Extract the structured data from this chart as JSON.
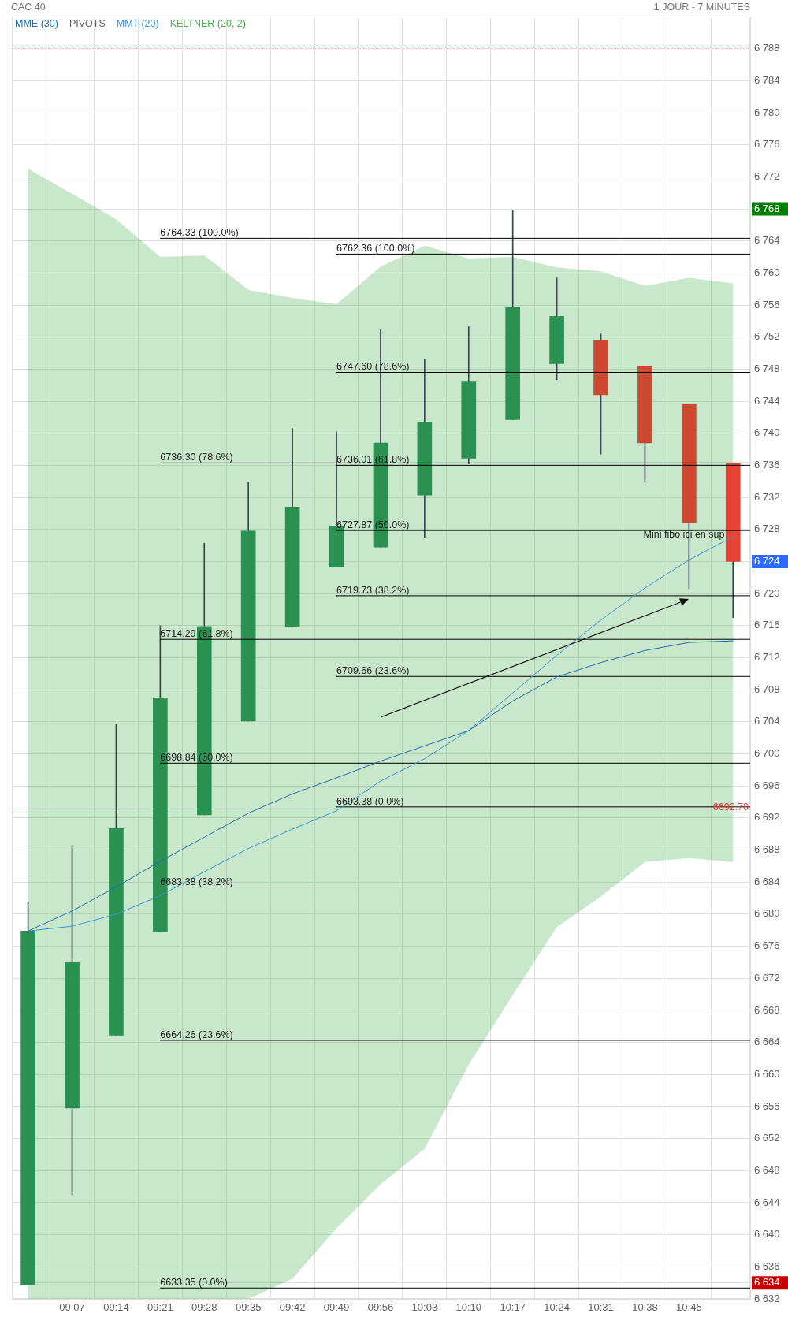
{
  "chart_data": {
    "type": "candlestick",
    "title": "CAC 40",
    "subtitle": "1 JOUR - 7 MINUTES",
    "x": [
      9,
      9.1167,
      9.2333,
      9.35,
      9.4667,
      9.5833,
      9.7,
      9.8167,
      9.9333,
      10.05,
      10.1667,
      10.2833,
      10.4,
      10.5167,
      10.6333,
      10.75,
      10.8667
    ],
    "ohlc": [
      [
        6633.7,
        6681.4,
        6633.7,
        6677.9
      ],
      [
        6655.8,
        6688.4,
        6645.0,
        6674.0
      ],
      [
        6664.9,
        6703.7,
        6664.9,
        6690.7
      ],
      [
        6677.8,
        6716.0,
        6677.8,
        6707.0
      ],
      [
        6692.4,
        6726.3,
        6692.4,
        6715.9
      ],
      [
        6704.1,
        6733.9,
        6704.1,
        6727.8
      ],
      [
        6715.9,
        6740.6,
        6715.9,
        6730.8
      ],
      [
        6723.4,
        6740.2,
        6723.4,
        6728.4
      ],
      [
        6725.8,
        6752.9,
        6725.8,
        6738.8
      ],
      [
        6732.3,
        6749.2,
        6727.0,
        6741.4
      ],
      [
        6736.9,
        6753.3,
        6736.2,
        6746.4
      ],
      [
        6741.7,
        6767.8,
        6741.7,
        6755.7
      ],
      [
        6748.7,
        6759.4,
        6746.7,
        6754.6
      ],
      [
        6751.6,
        6752.4,
        6737.4,
        6744.8
      ],
      [
        6748.3,
        6748.3,
        6733.9,
        6738.8
      ],
      [
        6743.6,
        6743.6,
        6720.6,
        6728.8
      ],
      [
        6736.2,
        6736.2,
        6717.0,
        6724.0
      ]
    ],
    "colors": [
      "#2a9152",
      "#2a9152",
      "#2a9152",
      "#2a9152",
      "#2a9152",
      "#2a9152",
      "#2a9152",
      "#2a9152",
      "#2a9152",
      "#2a9152",
      "#2a9152",
      "#2a9152",
      "#2a9152",
      "#cc4a30",
      "#cc4a30",
      "#cc4a30",
      "#e64536"
    ],
    "xlim": [
      8.957,
      10.912
    ],
    "xticks": [
      {
        "value": 9.1167,
        "label": "09:07"
      },
      {
        "value": 9.2333,
        "label": "09:14"
      },
      {
        "value": 9.35,
        "label": "09:21"
      },
      {
        "value": 9.4667,
        "label": "09:28"
      },
      {
        "value": 9.5833,
        "label": "09:35"
      },
      {
        "value": 9.7,
        "label": "09:42"
      },
      {
        "value": 9.8167,
        "label": "09:49"
      },
      {
        "value": 9.9333,
        "label": "09:56"
      },
      {
        "value": 10.05,
        "label": "10:03"
      },
      {
        "value": 10.1667,
        "label": "10:10"
      },
      {
        "value": 10.2833,
        "label": "10:17"
      },
      {
        "value": 10.4,
        "label": "10:24"
      },
      {
        "value": 10.5167,
        "label": "10:31"
      },
      {
        "value": 10.6333,
        "label": "10:38"
      },
      {
        "value": 10.75,
        "label": "10:45"
      }
    ],
    "ylim": [
      6632,
      6792
    ],
    "yticks": [
      {
        "value": 6632,
        "label": "6 632"
      },
      {
        "value": 6634,
        "label": "6 634"
      },
      {
        "value": 6636,
        "label": "6 636"
      },
      {
        "value": 6640,
        "label": "6 640"
      },
      {
        "value": 6644,
        "label": "6 644"
      },
      {
        "value": 6648,
        "label": "6 648"
      },
      {
        "value": 6652,
        "label": "6 652"
      },
      {
        "value": 6656,
        "label": "6 656"
      },
      {
        "value": 6660,
        "label": "6 660"
      },
      {
        "value": 6664,
        "label": "6 664"
      },
      {
        "value": 6668,
        "label": "6 668"
      },
      {
        "value": 6672,
        "label": "6 672"
      },
      {
        "value": 6676,
        "label": "6 676"
      },
      {
        "value": 6680,
        "label": "6 680"
      },
      {
        "value": 6684,
        "label": "6 684"
      },
      {
        "value": 6688,
        "label": "6 688"
      },
      {
        "value": 6692,
        "label": "6 692"
      },
      {
        "value": 6696,
        "label": "6 696"
      },
      {
        "value": 6700,
        "label": "6 700"
      },
      {
        "value": 6704,
        "label": "6 704"
      },
      {
        "value": 6708,
        "label": "6 708"
      },
      {
        "value": 6712,
        "label": "6 712"
      },
      {
        "value": 6716,
        "label": "6 716"
      },
      {
        "value": 6720,
        "label": "6 720"
      },
      {
        "value": 6724,
        "label": "6 724"
      },
      {
        "value": 6728,
        "label": "6 728"
      },
      {
        "value": 6732,
        "label": "6 732"
      },
      {
        "value": 6736,
        "label": "6 736"
      },
      {
        "value": 6740,
        "label": "6 740"
      },
      {
        "value": 6744,
        "label": "6 744"
      },
      {
        "value": 6748,
        "label": "6 748"
      },
      {
        "value": 6752,
        "label": "6 752"
      },
      {
        "value": 6756,
        "label": "6 756"
      },
      {
        "value": 6760,
        "label": "6 760"
      },
      {
        "value": 6764,
        "label": "6 764"
      },
      {
        "value": 6768,
        "label": "6 768"
      },
      {
        "value": 6772,
        "label": "6 772"
      },
      {
        "value": 6776,
        "label": "6 776"
      },
      {
        "value": 6780,
        "label": "6 780"
      },
      {
        "value": 6784,
        "label": "6 784"
      },
      {
        "value": 6788,
        "label": "6 788"
      }
    ],
    "grid": true,
    "legend": "top left",
    "marker": "none",
    "series": [
      {
        "name": "MME (30)",
        "type": "line",
        "color": "#1d6fb0",
        "values": [
          6677.9,
          6680.4,
          6683.4,
          6686.6,
          6689.6,
          6692.6,
          6695.0,
          6697.0,
          6699.1,
          6701.0,
          6702.9,
          6706.6,
          6709.6,
          6711.4,
          6712.9,
          6713.9,
          6714.1
        ]
      },
      {
        "name": "PIVOTS",
        "type": "line",
        "color": "#616161",
        "values": [
          null,
          null,
          null,
          null,
          null,
          null,
          null,
          null,
          null,
          null,
          null,
          null,
          null,
          null,
          null,
          null,
          null
        ]
      },
      {
        "name": "MMT (20)",
        "type": "line",
        "color": "#3b94d6",
        "values": [
          6677.9,
          6678.5,
          6680.0,
          6682.3,
          6685.3,
          6688.2,
          6690.6,
          6692.9,
          6696.6,
          6699.4,
          6702.9,
          6707.6,
          6712.3,
          6716.7,
          6720.7,
          6724.2,
          6727.1
        ]
      },
      {
        "name": "KELTNER (20, 2)",
        "type": "line",
        "color": "#4caf50",
        "values": [
          null,
          null,
          null,
          null,
          null,
          null,
          null,
          null,
          null,
          null,
          null,
          null,
          null,
          null,
          null,
          null,
          null
        ],
        "upper": [
          6773.0,
          6769.9,
          6766.7,
          6762.0,
          6762.2,
          6757.9,
          6756.9,
          6756.1,
          6760.8,
          6763.4,
          6761.8,
          6762.0,
          6760.7,
          6760.2,
          6758.4,
          6759.4,
          6758.7
        ],
        "lower": [
          6632,
          6632,
          6632,
          6632,
          6632,
          6632,
          6634.5,
          6640.8,
          6646.3,
          6650.7,
          6661.2,
          6669.9,
          6678.4,
          6682.2,
          6686.5,
          6687.0,
          6686.5
        ]
      },
      {
        "name": "6764.33 (100.0%)",
        "type": "line",
        "color": "#000000",
        "x": [
          9.35,
          10.912
        ],
        "values": [
          6764.33,
          6764.33
        ]
      },
      {
        "name": "6736.30 (78.6%)",
        "type": "line",
        "color": "#000000",
        "x": [
          9.35,
          10.912
        ],
        "values": [
          6736.3,
          6736.3
        ]
      },
      {
        "name": "6714.29 (61.8%)",
        "type": "line",
        "color": "#000000",
        "x": [
          9.35,
          10.912
        ],
        "values": [
          6714.29,
          6714.29
        ]
      },
      {
        "name": "6698.84 (50.0%)",
        "type": "line",
        "color": "#000000",
        "x": [
          9.35,
          10.912
        ],
        "values": [
          6698.84,
          6698.84
        ]
      },
      {
        "name": "6683.38 (38.2%)",
        "type": "line",
        "color": "#000000",
        "x": [
          9.35,
          10.912
        ],
        "values": [
          6683.38,
          6683.38
        ]
      },
      {
        "name": "6664.26 (23.6%)",
        "type": "line",
        "color": "#000000",
        "x": [
          9.35,
          10.912
        ],
        "values": [
          6664.26,
          6664.26
        ]
      },
      {
        "name": "6633.35 (0.0%)",
        "type": "line",
        "color": "#000000",
        "x": [
          9.35,
          10.912
        ],
        "values": [
          6633.35,
          6633.35
        ]
      },
      {
        "name": "6762.36 (100.0%)",
        "type": "line",
        "color": "#000000",
        "x": [
          9.8167,
          10.912
        ],
        "values": [
          6762.36,
          6762.36
        ]
      },
      {
        "name": "6747.60 (78.6%)",
        "type": "line",
        "color": "#000000",
        "x": [
          9.8167,
          10.912
        ],
        "values": [
          6747.6,
          6747.6
        ]
      },
      {
        "name": "6736.01 (61.8%)",
        "type": "line",
        "color": "#000000",
        "x": [
          9.8167,
          10.912
        ],
        "values": [
          6736.01,
          6736.01
        ]
      },
      {
        "name": "6727.87 (50.0%)",
        "type": "line",
        "color": "#000000",
        "x": [
          9.8167,
          10.912
        ],
        "values": [
          6727.87,
          6727.87
        ]
      },
      {
        "name": "6719.73 (38.2%)",
        "type": "line",
        "color": "#000000",
        "x": [
          9.8167,
          10.912
        ],
        "values": [
          6719.73,
          6719.73
        ]
      },
      {
        "name": "6709.66 (23.6%)",
        "type": "line",
        "color": "#000000",
        "x": [
          9.8167,
          10.912
        ],
        "values": [
          6709.66,
          6709.66
        ]
      },
      {
        "name": "6693.38 (0.0%)",
        "type": "line",
        "color": "#000000",
        "x": [
          9.8167,
          10.912
        ],
        "values": [
          6693.38,
          6693.38
        ]
      }
    ],
    "ref_lines": [
      {
        "axis": "y",
        "value": 6788.3,
        "color": "#ff0000",
        "line_style": "dashed"
      },
      {
        "axis": "y",
        "value": 6692.7,
        "label": "6692.70",
        "color": "#e53935"
      }
    ],
    "annotations": [
      "Mini fibo ici en sup"
    ]
  }
}
